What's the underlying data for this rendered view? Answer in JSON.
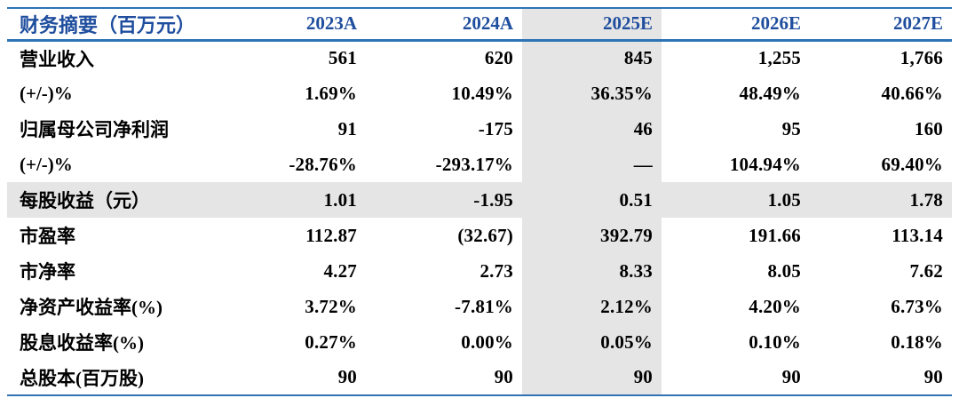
{
  "table": {
    "title": "财务摘要（百万元）",
    "header": {
      "columns": [
        "2023A",
        "2024A",
        "2025E",
        "2026E",
        "2027E"
      ]
    },
    "highlighted_column": "2025E",
    "highlighted_row": "每股收益（元）",
    "rows": [
      {
        "label": "营业收入",
        "values": [
          "561",
          "620",
          "845",
          "1,255",
          "1,766"
        ]
      },
      {
        "label": "(+/-)%",
        "values": [
          "1.69%",
          "10.49%",
          "36.35%",
          "48.49%",
          "40.66%"
        ]
      },
      {
        "label": "归属母公司净利润",
        "values": [
          "91",
          "-175",
          "46",
          "95",
          "160"
        ]
      },
      {
        "label": "(+/-)%",
        "values": [
          "-28.76%",
          "-293.17%",
          "—",
          "104.94%",
          "69.40%"
        ]
      },
      {
        "label": "每股收益（元）",
        "values": [
          "1.01",
          "-1.95",
          "0.51",
          "1.05",
          "1.78"
        ]
      },
      {
        "label": "市盈率",
        "values": [
          "112.87",
          "(32.67)",
          "392.79",
          "191.66",
          "113.14"
        ]
      },
      {
        "label": "市净率",
        "values": [
          "4.27",
          "2.73",
          "8.33",
          "8.05",
          "7.62"
        ]
      },
      {
        "label": "净资产收益率(%)",
        "values": [
          "3.72%",
          "-7.81%",
          "2.12%",
          "4.20%",
          "6.73%"
        ]
      },
      {
        "label": "股息收益率(%)",
        "values": [
          "0.27%",
          "0.00%",
          "0.05%",
          "0.10%",
          "0.18%"
        ]
      },
      {
        "label": "总股本(百万股)",
        "values": [
          "90",
          "90",
          "90",
          "90",
          "90"
        ]
      }
    ],
    "colors": {
      "header_text": "#1f4e9e",
      "rule_line": "#2e74b5",
      "highlight_gray": "#e5e5e5",
      "body_text": "#000000"
    }
  }
}
